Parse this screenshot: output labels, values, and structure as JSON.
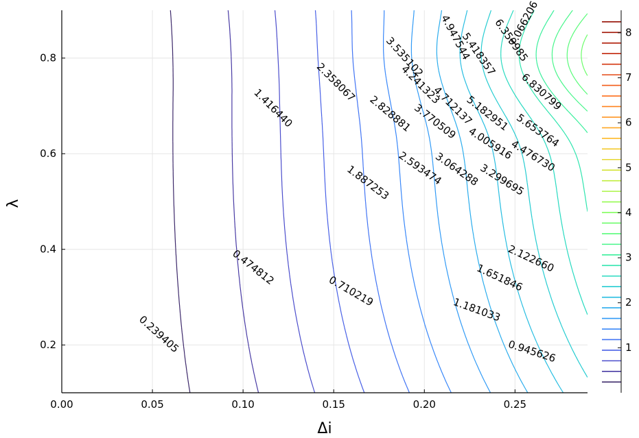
{
  "chart_data": {
    "type": "contour",
    "xlabel": "Δi",
    "ylabel": "λ",
    "xlim": [
      0.0,
      0.29
    ],
    "ylim": [
      0.1,
      0.9
    ],
    "grid": true,
    "x_ticks": [
      "0.00",
      "0.05",
      "0.10",
      "0.15",
      "0.20",
      "0.25"
    ],
    "y_ticks": [
      "0.2",
      "0.4",
      "0.6",
      "0.8"
    ],
    "colorbar": {
      "range": [
        0,
        8.5
      ],
      "ticks": [
        "1",
        "2",
        "3",
        "4",
        "5",
        "6",
        "7",
        "8"
      ],
      "colormap": "turbo",
      "placement": "right"
    },
    "levels": [
      0.239405,
      0.474812,
      0.710219,
      0.945626,
      1.181033,
      1.41644,
      1.651846,
      1.887253,
      2.12266,
      2.358067,
      2.593474,
      2.828881,
      3.064288,
      3.299695,
      3.535102,
      3.770509,
      4.005916,
      4.241323,
      4.47673,
      4.712137,
      4.947544,
      5.182951,
      5.418357,
      5.653764,
      5.889171,
      6.124578,
      6.359985,
      6.595392,
      6.830799,
      7.066206,
      7.301613,
      7.53702,
      7.772427,
      8.007834,
      8.243241
    ],
    "contour_labels": [
      {
        "text": "0.239405",
        "x": 0.0535,
        "y": 0.222,
        "angle": 42
      },
      {
        "text": "0.474812",
        "x": 0.1055,
        "y": 0.362,
        "angle": 38
      },
      {
        "text": "0.710219",
        "x": 0.1595,
        "y": 0.312,
        "angle": 30
      },
      {
        "text": "0.945626",
        "x": 0.2593,
        "y": 0.186,
        "angle": 18
      },
      {
        "text": "1.181033",
        "x": 0.2289,
        "y": 0.273,
        "angle": 20
      },
      {
        "text": "1.416440",
        "x": 0.1165,
        "y": 0.695,
        "angle": 45
      },
      {
        "text": "1.651846",
        "x": 0.2415,
        "y": 0.34,
        "angle": 25
      },
      {
        "text": "1.887253",
        "x": 0.1688,
        "y": 0.539,
        "angle": 37
      },
      {
        "text": "2.122660",
        "x": 0.2588,
        "y": 0.38,
        "angle": 25
      },
      {
        "text": "2.358067",
        "x": 0.1511,
        "y": 0.749,
        "angle": 45
      },
      {
        "text": "2.593474",
        "x": 0.1976,
        "y": 0.569,
        "angle": 35
      },
      {
        "text": "2.828881",
        "x": 0.1811,
        "y": 0.683,
        "angle": 40
      },
      {
        "text": "3.064288",
        "x": 0.2178,
        "y": 0.567,
        "angle": 35
      },
      {
        "text": "3.299695",
        "x": 0.2428,
        "y": 0.545,
        "angle": 32
      },
      {
        "text": "3.535102",
        "x": 0.189,
        "y": 0.802,
        "angle": 48
      },
      {
        "text": "3.770509",
        "x": 0.2058,
        "y": 0.667,
        "angle": 38
      },
      {
        "text": "4.005916",
        "x": 0.2363,
        "y": 0.621,
        "angle": 33
      },
      {
        "text": "4.241323",
        "x": 0.1978,
        "y": 0.744,
        "angle": 45
      },
      {
        "text": "4.476730",
        "x": 0.2599,
        "y": 0.595,
        "angle": 32
      },
      {
        "text": "4.712137",
        "x": 0.2156,
        "y": 0.7,
        "angle": 45
      },
      {
        "text": "4.947544",
        "x": 0.2171,
        "y": 0.843,
        "angle": 62
      },
      {
        "text": "5.182951",
        "x": 0.2347,
        "y": 0.684,
        "angle": 38
      },
      {
        "text": "5.418357",
        "x": 0.2299,
        "y": 0.808,
        "angle": 55
      },
      {
        "text": "5.653764",
        "x": 0.2625,
        "y": 0.648,
        "angle": 35
      },
      {
        "text": "6.359985",
        "x": 0.2479,
        "y": 0.837,
        "angle": 55
      },
      {
        "text": "6.830799",
        "x": 0.2645,
        "y": 0.729,
        "angle": 42
      },
      {
        "text": "7.066206",
        "x": 0.2548,
        "y": 0.872,
        "angle": -62
      }
    ]
  }
}
